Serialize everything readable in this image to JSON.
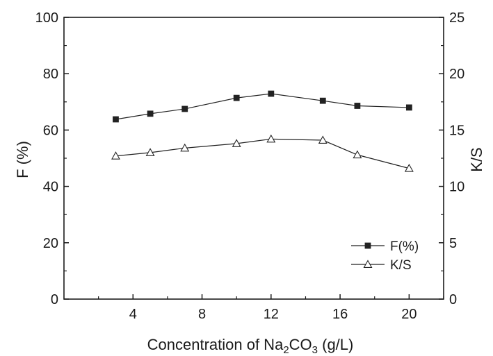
{
  "chart_data": {
    "type": "line",
    "x": [
      3,
      5,
      7,
      10,
      12,
      15,
      17,
      20
    ],
    "xlim": [
      0,
      22
    ],
    "x_ticks": [
      "4",
      "8",
      "12",
      "16",
      "20"
    ],
    "xlabel": {
      "main": "Concentration of Na",
      "sub1": "2",
      "mid": "CO",
      "sub2": "3",
      "tail": " (g/L)"
    },
    "y_left": {
      "label": "F (%)",
      "lim": [
        0,
        100
      ],
      "ticks": [
        "0",
        "20",
        "40",
        "60",
        "80",
        "100"
      ]
    },
    "y_right": {
      "label": "K/S",
      "lim": [
        0,
        25
      ],
      "ticks": [
        "0",
        "5",
        "10",
        "15",
        "20",
        "25"
      ]
    },
    "series": [
      {
        "name": "F(%)",
        "axis": "left",
        "marker": "filled-square",
        "values": [
          63.8,
          65.8,
          67.5,
          71.4,
          72.9,
          70.4,
          68.6,
          68.0
        ]
      },
      {
        "name": "K/S",
        "axis": "right",
        "marker": "open-triangle",
        "values": [
          12.7,
          13.0,
          13.4,
          13.8,
          14.2,
          14.1,
          12.8,
          11.6
        ]
      }
    ],
    "legend": {
      "position": "bottom-right",
      "items": [
        "F(%)",
        "K/S"
      ]
    },
    "grid": false,
    "colors": {
      "line": "#222222",
      "axis": "#1a1a1a"
    }
  }
}
